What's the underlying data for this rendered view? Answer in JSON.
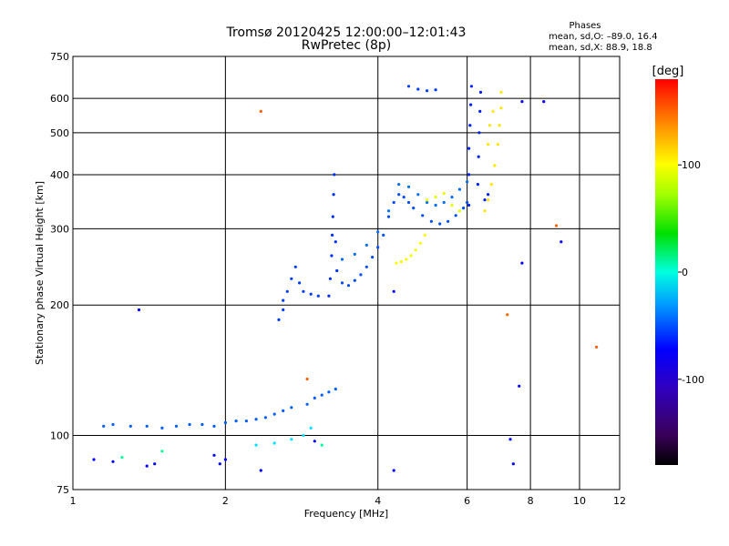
{
  "chart_data": {
    "type": "scatter",
    "title": "Tromsø 20120425 12:00:00–12:01:43",
    "subtitle": "RwPretec (8p)",
    "xlabel": "Frequency [MHz]",
    "ylabel": "Stationary phase Virtual Height [km]",
    "x_scale": "log",
    "y_scale": "log",
    "xlim": [
      1,
      12
    ],
    "ylim": [
      75,
      750
    ],
    "x_ticks": [
      1,
      2,
      4,
      6,
      8,
      10,
      12
    ],
    "y_ticks": [
      75,
      100,
      200,
      300,
      400,
      500,
      600,
      750
    ],
    "grid": true,
    "phases_box": {
      "title": "Phases",
      "line1": "mean, sd,O: –89.0, 16.4",
      "line2": "mean, sd,X: 88.9, 18.8"
    },
    "colorbar": {
      "label": "[deg]",
      "range": [
        -180,
        180
      ],
      "ticks": [
        100,
        0,
        -100
      ]
    },
    "series": [
      {
        "phase": -100,
        "points": [
          [
            1.15,
            105
          ],
          [
            1.2,
            106
          ],
          [
            1.3,
            105
          ],
          [
            1.4,
            105
          ],
          [
            1.5,
            104
          ],
          [
            1.6,
            105
          ],
          [
            1.7,
            106
          ],
          [
            1.8,
            106
          ],
          [
            1.9,
            105
          ],
          [
            2.0,
            107
          ],
          [
            2.1,
            108
          ],
          [
            2.2,
            108
          ],
          [
            2.3,
            109
          ],
          [
            2.4,
            110
          ],
          [
            2.5,
            112
          ],
          [
            2.6,
            114
          ],
          [
            2.7,
            116
          ],
          [
            2.9,
            118
          ],
          [
            3.0,
            122
          ],
          [
            3.1,
            124
          ],
          [
            3.2,
            126
          ],
          [
            3.3,
            128
          ]
        ]
      },
      {
        "phase": -110,
        "points": [
          [
            2.55,
            185
          ],
          [
            2.6,
            195
          ],
          [
            2.6,
            205
          ],
          [
            2.65,
            215
          ],
          [
            2.7,
            230
          ],
          [
            2.75,
            245
          ],
          [
            2.8,
            225
          ],
          [
            2.85,
            215
          ],
          [
            2.95,
            212
          ],
          [
            3.05,
            210
          ]
        ]
      },
      {
        "phase": -115,
        "points": [
          [
            3.2,
            210
          ],
          [
            3.22,
            230
          ],
          [
            3.24,
            260
          ],
          [
            3.25,
            290
          ],
          [
            3.26,
            320
          ],
          [
            3.27,
            360
          ],
          [
            3.28,
            400
          ],
          [
            3.3,
            280
          ],
          [
            3.32,
            240
          ]
        ]
      },
      {
        "phase": -105,
        "points": [
          [
            3.4,
            225
          ],
          [
            3.5,
            222
          ],
          [
            3.6,
            228
          ],
          [
            3.7,
            235
          ],
          [
            3.8,
            245
          ],
          [
            3.9,
            258
          ],
          [
            4.0,
            272
          ],
          [
            4.1,
            290
          ],
          [
            4.2,
            320
          ],
          [
            4.3,
            345
          ],
          [
            4.4,
            360
          ],
          [
            4.5,
            355
          ],
          [
            4.6,
            345
          ],
          [
            4.7,
            335
          ],
          [
            4.9,
            322
          ],
          [
            5.1,
            312
          ],
          [
            5.3,
            308
          ],
          [
            5.5,
            312
          ],
          [
            5.7,
            322
          ],
          [
            5.9,
            335
          ],
          [
            6.0,
            345
          ]
        ]
      },
      {
        "phase": -95,
        "points": [
          [
            3.4,
            255
          ],
          [
            3.6,
            262
          ],
          [
            3.8,
            275
          ],
          [
            4.0,
            295
          ],
          [
            4.2,
            330
          ],
          [
            4.4,
            380
          ],
          [
            4.6,
            375
          ],
          [
            4.8,
            360
          ],
          [
            5.0,
            345
          ],
          [
            5.2,
            340
          ],
          [
            5.4,
            345
          ],
          [
            5.6,
            355
          ],
          [
            5.8,
            370
          ],
          [
            6.0,
            385
          ]
        ]
      },
      {
        "phase": -120,
        "points": [
          [
            6.05,
            340
          ],
          [
            6.05,
            400
          ],
          [
            6.05,
            460
          ],
          [
            6.08,
            520
          ],
          [
            6.1,
            580
          ],
          [
            6.12,
            640
          ],
          [
            6.3,
            380
          ],
          [
            6.32,
            440
          ],
          [
            6.34,
            500
          ],
          [
            6.36,
            560
          ],
          [
            6.38,
            620
          ],
          [
            6.5,
            350
          ],
          [
            6.6,
            360
          ]
        ]
      },
      {
        "phase": -110,
        "points": [
          [
            4.6,
            640
          ],
          [
            4.8,
            630
          ],
          [
            5.0,
            625
          ],
          [
            5.2,
            628
          ]
        ]
      },
      {
        "phase": 100,
        "points": [
          [
            4.35,
            250
          ],
          [
            4.45,
            252
          ],
          [
            4.55,
            255
          ],
          [
            4.65,
            260
          ],
          [
            4.75,
            268
          ],
          [
            4.85,
            278
          ],
          [
            4.95,
            290
          ]
        ]
      },
      {
        "phase": 95,
        "points": [
          [
            5.0,
            350
          ],
          [
            5.2,
            355
          ],
          [
            5.4,
            362
          ],
          [
            5.6,
            340
          ],
          [
            5.8,
            330
          ]
        ]
      },
      {
        "phase": 110,
        "points": [
          [
            6.5,
            330
          ],
          [
            6.6,
            350
          ],
          [
            6.7,
            380
          ],
          [
            6.8,
            420
          ],
          [
            6.9,
            470
          ],
          [
            6.95,
            520
          ],
          [
            7.0,
            570
          ],
          [
            7.0,
            620
          ],
          [
            6.6,
            470
          ],
          [
            6.65,
            520
          ],
          [
            6.75,
            560
          ]
        ]
      },
      {
        "phase": -60,
        "points": [
          [
            2.3,
            95
          ],
          [
            2.5,
            96
          ],
          [
            2.7,
            98
          ],
          [
            2.85,
            100
          ],
          [
            2.95,
            104
          ]
        ]
      },
      {
        "phase": 150,
        "points": [
          [
            2.35,
            560
          ],
          [
            2.9,
            135
          ],
          [
            7.2,
            190
          ],
          [
            9.0,
            305
          ],
          [
            10.8,
            160
          ]
        ]
      },
      {
        "phase": -130,
        "points": [
          [
            1.35,
            195
          ],
          [
            1.1,
            88
          ],
          [
            1.2,
            87
          ],
          [
            1.4,
            85
          ],
          [
            1.45,
            86
          ],
          [
            1.9,
            90
          ],
          [
            1.95,
            86
          ],
          [
            2.0,
            88
          ],
          [
            2.35,
            83
          ],
          [
            3.0,
            97
          ],
          [
            4.3,
            83
          ],
          [
            4.3,
            215
          ],
          [
            7.3,
            98
          ],
          [
            7.4,
            86
          ],
          [
            7.6,
            130
          ],
          [
            7.7,
            250
          ],
          [
            7.7,
            590
          ],
          [
            8.5,
            590
          ],
          [
            9.2,
            280
          ]
        ]
      },
      {
        "phase": -20,
        "points": [
          [
            1.25,
            89
          ],
          [
            1.5,
            92
          ],
          [
            3.1,
            95
          ]
        ]
      }
    ]
  }
}
